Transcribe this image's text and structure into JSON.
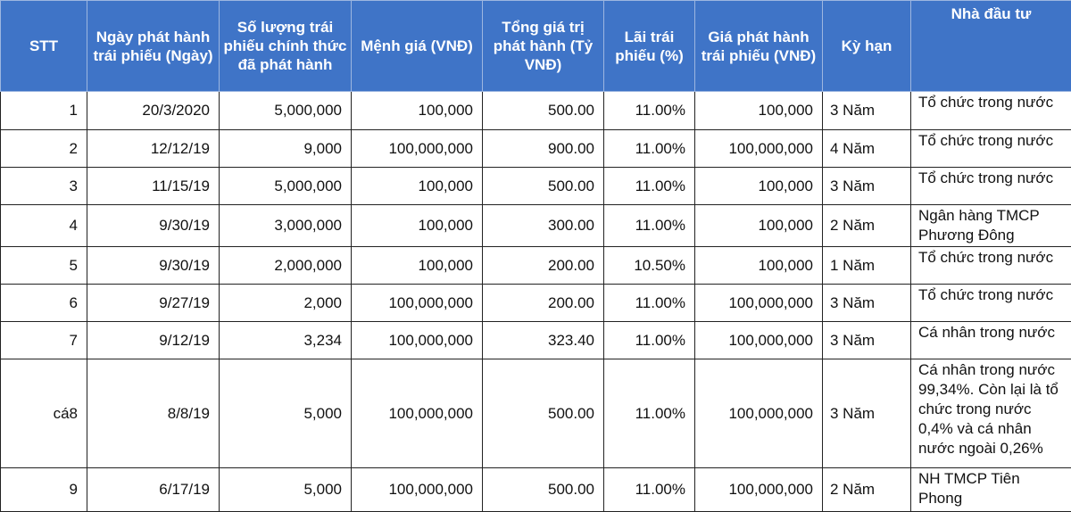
{
  "table": {
    "headers": [
      "STT",
      "Ngày phát hành trái phiếu (Ngày)",
      "Số lượng trái phiếu chính thức đã phát hành",
      "Mệnh giá (VNĐ)",
      "Tổng giá trị phát hành (Tỷ VNĐ)",
      "Lãi trái phiếu (%)",
      "Giá phát hành trái phiếu (VNĐ)",
      "Kỳ hạn",
      "Nhà đầu tư"
    ],
    "rows": [
      [
        "1",
        "20/3/2020",
        "5,000,000",
        "100,000",
        "500.00",
        "11.00%",
        "100,000",
        "3 Năm",
        "Tổ chức trong nước"
      ],
      [
        "2",
        "12/12/19",
        "9,000",
        "100,000,000",
        "900.00",
        "11.00%",
        "100,000,000",
        "4 Năm",
        "Tổ chức trong nước"
      ],
      [
        "3",
        "11/15/19",
        "5,000,000",
        "100,000",
        "500.00",
        "11.00%",
        "100,000",
        "3 Năm",
        "Tổ chức trong nước"
      ],
      [
        "4",
        "9/30/19",
        "3,000,000",
        "100,000",
        "300.00",
        "11.00%",
        "100,000",
        "2 Năm",
        "Ngân hàng TMCP Phương Đông"
      ],
      [
        "5",
        "9/30/19",
        "2,000,000",
        "100,000",
        "200.00",
        "10.50%",
        "100,000",
        "1 Năm",
        "Tổ chức trong nước"
      ],
      [
        "6",
        "9/27/19",
        "2,000",
        "100,000,000",
        "200.00",
        "11.00%",
        "100,000,000",
        "3 Năm",
        "Tổ chức trong nước"
      ],
      [
        "7",
        "9/12/19",
        "3,234",
        "100,000,000",
        "323.40",
        "11.00%",
        "100,000,000",
        "3 Năm",
        "Cá nhân trong nước"
      ],
      [
        "cá8",
        "8/8/19",
        "5,000",
        "100,000,000",
        "500.00",
        "11.00%",
        "100,000,000",
        "3 Năm",
        "Cá nhân trong nước 99,34%. Còn lại là tổ chức trong nước 0,4% và cá nhân nước ngoài 0,26%"
      ],
      [
        "9",
        "6/17/19",
        "5,000",
        "100,000,000",
        "500.00",
        "11.00%",
        "100,000,000",
        "2 Năm",
        "NH TMCP Tiên Phong"
      ]
    ]
  },
  "colors": {
    "header_bg": "#3f74c7",
    "header_text": "#ffffff",
    "grid": "#222222"
  }
}
